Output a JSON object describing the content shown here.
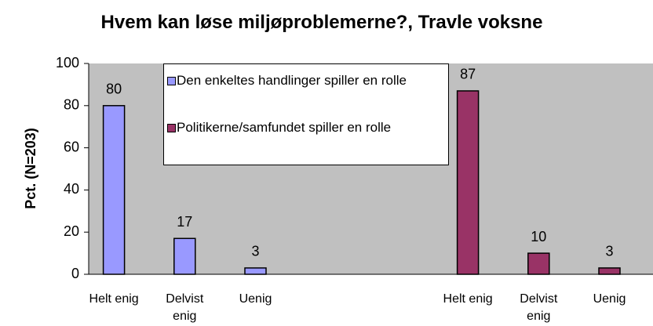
{
  "chart_data": {
    "type": "bar",
    "title": "Hvem kan løse miljøproblemerne?, Travle voksne",
    "y_label": "Pct. (N=203)",
    "categories": [
      "Helt enig",
      "Delvist enig",
      "Uenig",
      null,
      null,
      "Helt enig",
      "Delvist enig",
      "Uenig"
    ],
    "series": [
      {
        "name": "Den enkeltes handlinger spiller en rolle",
        "color": "#9999ff",
        "values": [
          80,
          17,
          3,
          null,
          null,
          null,
          null,
          null
        ]
      },
      {
        "name": "Politikerne/samfundet spiller en rolle",
        "color": "#993366",
        "values": [
          null,
          null,
          null,
          null,
          null,
          87,
          10,
          3
        ]
      }
    ],
    "ylim": [
      0,
      100
    ],
    "yticks": [
      0,
      20,
      40,
      60,
      80,
      100
    ],
    "grid": false
  }
}
